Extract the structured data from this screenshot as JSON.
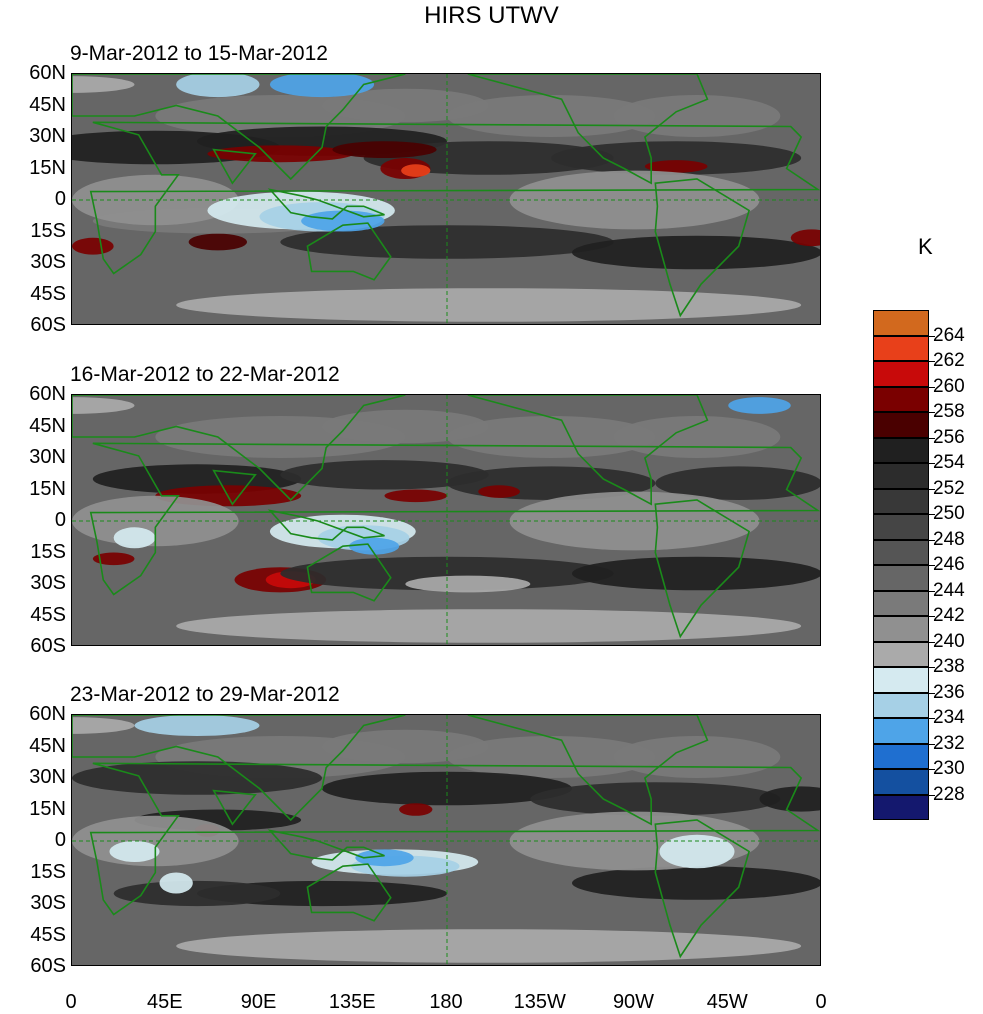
{
  "title": "HIRS UTWV",
  "unit": "K",
  "panels": [
    {
      "label": "9-Mar-2012 to 15-Mar-2012"
    },
    {
      "label": "16-Mar-2012 to 22-Mar-2012"
    },
    {
      "label": "23-Mar-2012 to 29-Mar-2012"
    }
  ],
  "lat_labels": [
    "60N",
    "45N",
    "30N",
    "15N",
    "0",
    "15S",
    "30S",
    "45S",
    "60S"
  ],
  "lon_labels": [
    "0",
    "45E",
    "90E",
    "135E",
    "180",
    "135W",
    "90W",
    "45W",
    "0"
  ],
  "colorbar": {
    "labels": [
      "264",
      "262",
      "260",
      "258",
      "256",
      "254",
      "252",
      "250",
      "248",
      "246",
      "244",
      "242",
      "240",
      "238",
      "236",
      "234",
      "232",
      "230",
      "228"
    ],
    "colors": [
      "#d2691e",
      "#e8401a",
      "#c80a0a",
      "#7a0000",
      "#4a0000",
      "#202020",
      "#2c2c2c",
      "#383838",
      "#454545",
      "#555555",
      "#666666",
      "#7a7a7a",
      "#909090",
      "#aaaaaa",
      "#d5eaf0",
      "#a6d0e6",
      "#4ea4e8",
      "#1f6fd0",
      "#1450a0",
      "#14186e"
    ]
  }
}
